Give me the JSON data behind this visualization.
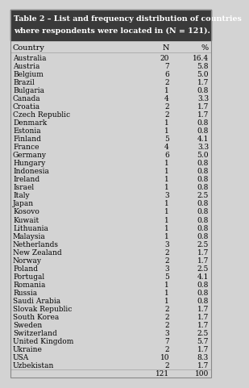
{
  "title_line1": "Table 2 – List and frequency distribution of countries",
  "title_line2": "where respondents were located in (N = 121).",
  "col_headers": [
    "Country",
    "N",
    "%"
  ],
  "rows": [
    [
      "Australia",
      "20",
      "16.4"
    ],
    [
      "Austria",
      "7",
      "5.8"
    ],
    [
      "Belgium",
      "6",
      "5.0"
    ],
    [
      "Brazil",
      "2",
      "1.7"
    ],
    [
      "Bulgaria",
      "1",
      "0.8"
    ],
    [
      "Canada",
      "4",
      "3.3"
    ],
    [
      "Croatia",
      "2",
      "1.7"
    ],
    [
      "Czech Republic",
      "2",
      "1.7"
    ],
    [
      "Denmark",
      "1",
      "0.8"
    ],
    [
      "Estonia",
      "1",
      "0.8"
    ],
    [
      "Finland",
      "5",
      "4.1"
    ],
    [
      "France",
      "4",
      "3.3"
    ],
    [
      "Germany",
      "6",
      "5.0"
    ],
    [
      "Hungary",
      "1",
      "0.8"
    ],
    [
      "Indonesia",
      "1",
      "0.8"
    ],
    [
      "Ireland",
      "1",
      "0.8"
    ],
    [
      "Israel",
      "1",
      "0.8"
    ],
    [
      "Italy",
      "3",
      "2.5"
    ],
    [
      "Japan",
      "1",
      "0.8"
    ],
    [
      "Kosovo",
      "1",
      "0.8"
    ],
    [
      "Kuwait",
      "1",
      "0.8"
    ],
    [
      "Lithuania",
      "1",
      "0.8"
    ],
    [
      "Malaysia",
      "1",
      "0.8"
    ],
    [
      "Netherlands",
      "3",
      "2.5"
    ],
    [
      "New Zealand",
      "2",
      "1.7"
    ],
    [
      "Norway",
      "2",
      "1.7"
    ],
    [
      "Poland",
      "3",
      "2.5"
    ],
    [
      "Portugal",
      "5",
      "4.1"
    ],
    [
      "Romania",
      "1",
      "0.8"
    ],
    [
      "Russia",
      "1",
      "0.8"
    ],
    [
      "Saudi Arabia",
      "1",
      "0.8"
    ],
    [
      "Slovak Republic",
      "2",
      "1.7"
    ],
    [
      "South Korea",
      "2",
      "1.7"
    ],
    [
      "Sweden",
      "2",
      "1.7"
    ],
    [
      "Switzerland",
      "3",
      "2.5"
    ],
    [
      "United Kingdom",
      "7",
      "5.7"
    ],
    [
      "Ukraine",
      "2",
      "1.7"
    ],
    [
      "USA",
      "10",
      "8.3"
    ],
    [
      "Uzbekistan",
      "2",
      "1.7"
    ],
    [
      "",
      "121",
      "100"
    ]
  ],
  "header_bg": "#3a3a3a",
  "header_fg": "#ffffff",
  "col_header_bg": "#d3d3d3",
  "col_header_fg": "#000000",
  "row_bg": "#d3d3d3",
  "row_fg": "#000000",
  "sep_color": "#aaaaaa",
  "font_family": "serif",
  "title_fontsize": 6.8,
  "header_fontsize": 7.0,
  "row_fontsize": 6.5
}
